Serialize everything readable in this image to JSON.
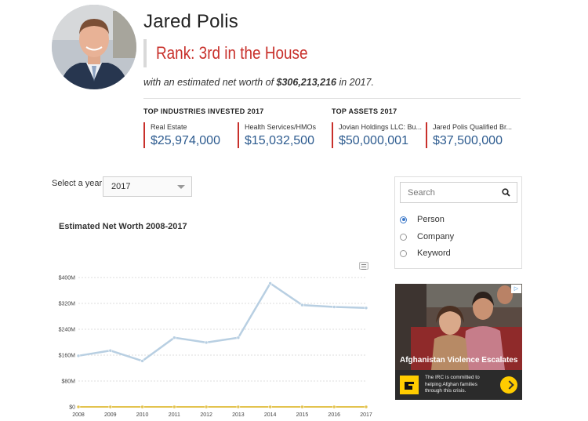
{
  "profile": {
    "name": "Jared Polis",
    "rank": "Rank: 3rd in the House",
    "networth_prefix": "with an estimated net worth of ",
    "networth_value": "$306,213,216",
    "networth_suffix": " in 2017."
  },
  "industries": {
    "heading": "TOP INDUSTRIES INVESTED 2017",
    "items": [
      {
        "label": "Real Estate",
        "value": "$25,974,000"
      },
      {
        "label": "Health Services/HMOs",
        "value": "$15,032,500"
      }
    ]
  },
  "assets": {
    "heading": "TOP ASSETS 2017",
    "items": [
      {
        "label": "Jovian Holdings LLC: Bu...",
        "value": "$50,000,001"
      },
      {
        "label": "Jared Polis Qualified Br...",
        "value": "$37,500,000"
      }
    ]
  },
  "year_select": {
    "label": "Select a year:",
    "value": "2017"
  },
  "search": {
    "placeholder": "Search",
    "options": [
      {
        "label": "Person",
        "selected": true
      },
      {
        "label": "Company",
        "selected": false
      },
      {
        "label": "Keyword",
        "selected": false
      }
    ]
  },
  "ad": {
    "headline": "Afghanistan Violence Escalates",
    "body": "The IRC is committed to helping Afghan families through this crisis.",
    "logo_color": "#ffcc00"
  },
  "chart_data": {
    "type": "line",
    "title": "Estimated Net Worth 2008-2017",
    "x": [
      "2008",
      "2009",
      "2010",
      "2011",
      "2012",
      "2013",
      "2014",
      "2015",
      "2016",
      "2017"
    ],
    "y_ticks": [
      "$0",
      "$80M",
      "$160M",
      "$240M",
      "$320M",
      "$400M"
    ],
    "ylim": [
      0,
      400
    ],
    "grid": true,
    "series": [
      {
        "color": "#b8cfe2",
        "values": [
          158,
          174,
          142,
          214,
          199,
          214,
          382,
          315,
          309,
          306
        ]
      },
      {
        "color": "#e3c34f",
        "values": [
          0,
          0,
          0,
          0,
          0,
          0,
          0,
          0,
          0,
          0
        ]
      }
    ]
  }
}
